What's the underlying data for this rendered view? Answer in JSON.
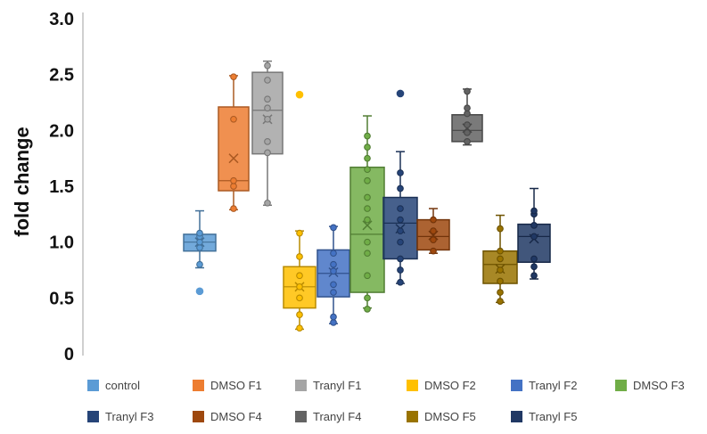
{
  "chart_data": {
    "type": "box",
    "title": "",
    "xlabel": "",
    "ylabel": "fold change",
    "ylim": [
      0,
      3.0
    ],
    "yticks": [
      "0",
      "0.5",
      "1.0",
      "1.5",
      "2.0",
      "2.5",
      "3.0"
    ],
    "grid": false,
    "legend_position": "bottom",
    "series": [
      {
        "name": "control",
        "color": "#5B9BD5",
        "box": {
          "min": 0.77,
          "q1": 0.92,
          "median": 1.0,
          "mean": 1.0,
          "q3": 1.07,
          "max": 1.28
        },
        "points": [
          0.8,
          0.95,
          1.0,
          1.05,
          1.08
        ],
        "outliers": [
          0.56
        ]
      },
      {
        "name": "DMSO F1",
        "color": "#ED7D31",
        "box": {
          "min": 1.29,
          "q1": 1.46,
          "median": 1.55,
          "mean": 1.75,
          "q3": 2.21,
          "max": 2.49
        },
        "points": [
          1.3,
          1.5,
          1.55,
          2.1,
          2.48
        ],
        "outliers": []
      },
      {
        "name": "Tranyl F1",
        "color": "#A5A5A5",
        "box": {
          "min": 1.33,
          "q1": 1.79,
          "median": 2.18,
          "mean": 2.1,
          "q3": 2.52,
          "max": 2.62
        },
        "points": [
          1.35,
          1.8,
          1.9,
          2.1,
          2.2,
          2.28,
          2.45,
          2.58
        ],
        "outliers": []
      },
      {
        "name": "DMSO F2",
        "color": "#FFC000",
        "box": {
          "min": 0.22,
          "q1": 0.41,
          "median": 0.6,
          "mean": 0.6,
          "q3": 0.78,
          "max": 1.1
        },
        "points": [
          0.23,
          0.35,
          0.5,
          0.6,
          0.7,
          0.87,
          1.08
        ],
        "outliers": [
          2.32
        ]
      },
      {
        "name": "Tranyl F2",
        "color": "#4472C4",
        "box": {
          "min": 0.27,
          "q1": 0.51,
          "median": 0.72,
          "mean": 0.73,
          "q3": 0.93,
          "max": 1.14
        },
        "points": [
          0.28,
          0.33,
          0.55,
          0.62,
          0.74,
          0.8,
          0.9,
          1.13
        ],
        "outliers": []
      },
      {
        "name": "DMSO F3",
        "color": "#70AD47",
        "box": {
          "min": 0.41,
          "q1": 0.55,
          "median": 1.07,
          "mean": 1.15,
          "q3": 1.67,
          "max": 2.13
        },
        "points": [
          0.4,
          0.5,
          0.7,
          0.9,
          1.0,
          1.2,
          1.3,
          1.4,
          1.55,
          1.65,
          1.75,
          1.85,
          1.95
        ],
        "outliers": []
      },
      {
        "name": "Tranyl F3",
        "color": "#264478",
        "box": {
          "min": 0.63,
          "q1": 0.85,
          "median": 1.17,
          "mean": 1.12,
          "q3": 1.4,
          "max": 1.81
        },
        "points": [
          0.64,
          0.75,
          0.85,
          1.0,
          1.1,
          1.2,
          1.3,
          1.48,
          1.62
        ],
        "outliers": [
          2.33
        ]
      },
      {
        "name": "DMSO F4",
        "color": "#9E480E",
        "box": {
          "min": 0.9,
          "q1": 0.93,
          "median": 1.05,
          "mean": 1.06,
          "q3": 1.2,
          "max": 1.3
        },
        "points": [
          0.92,
          1.02,
          1.1,
          1.2
        ],
        "outliers": []
      },
      {
        "name": "Tranyl F4",
        "color": "#636363",
        "box": {
          "min": 1.87,
          "q1": 1.9,
          "median": 2.0,
          "mean": 2.02,
          "q3": 2.14,
          "max": 2.37
        },
        "points": [
          1.9,
          1.98,
          2.05,
          2.15,
          2.2,
          2.35
        ],
        "outliers": []
      },
      {
        "name": "DMSO F5",
        "color": "#997300",
        "box": {
          "min": 0.46,
          "q1": 0.63,
          "median": 0.8,
          "mean": 0.76,
          "q3": 0.92,
          "max": 1.24
        },
        "points": [
          0.47,
          0.55,
          0.65,
          0.75,
          0.85,
          0.92,
          1.12
        ],
        "outliers": []
      },
      {
        "name": "Tranyl F5",
        "color": "#203864",
        "box": {
          "min": 0.67,
          "q1": 0.82,
          "median": 1.05,
          "mean": 1.03,
          "q3": 1.16,
          "max": 1.48
        },
        "points": [
          0.7,
          0.78,
          0.85,
          1.05,
          1.15,
          1.25,
          1.28
        ],
        "outliers": []
      }
    ]
  }
}
